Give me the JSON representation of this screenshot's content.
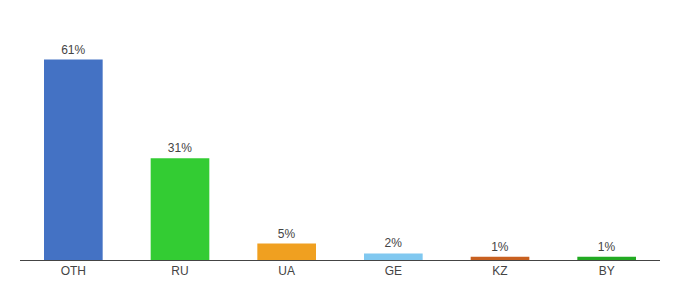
{
  "chart_data": {
    "type": "bar",
    "categories": [
      "OTH",
      "RU",
      "UA",
      "GE",
      "KZ",
      "BY"
    ],
    "values": [
      61,
      31,
      5,
      2,
      1,
      1
    ],
    "value_labels": [
      "61%",
      "31%",
      "5%",
      "2%",
      "1%",
      "1%"
    ],
    "data_labels": true,
    "colors": [
      "#4472c4",
      "#33cc33",
      "#f0a020",
      "#80c8f0",
      "#c86020",
      "#22aa22"
    ],
    "ylim": [
      0,
      70
    ],
    "grid": false,
    "tick_labels": "x"
  }
}
